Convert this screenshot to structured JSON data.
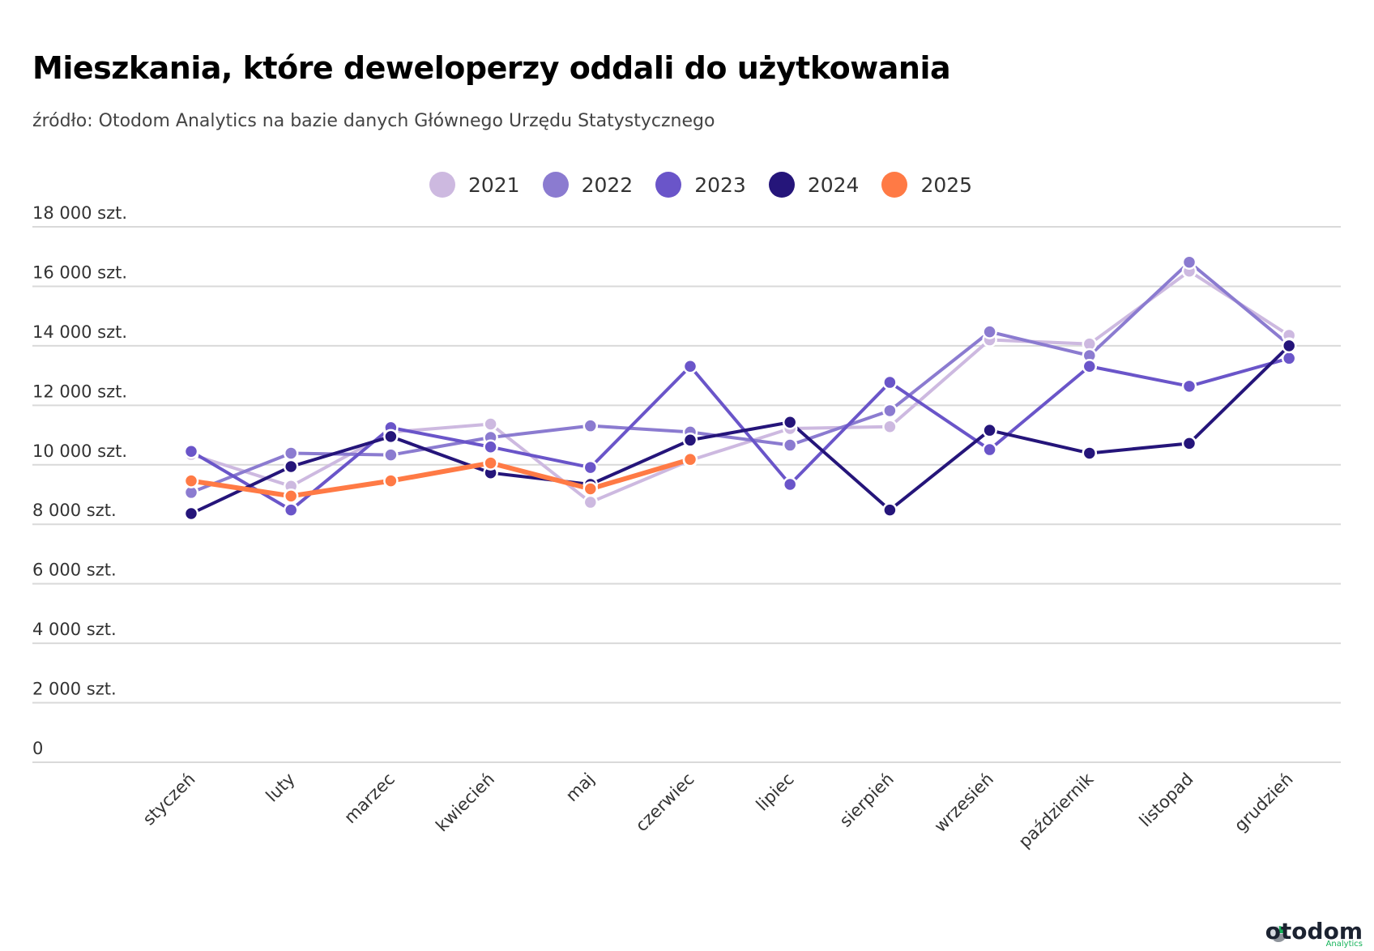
{
  "header": {
    "title": "Mieszkania, które deweloperzy oddali do użytkowania",
    "subtitle": "źródło: Otodom Analytics na bazie danych Głównego Urzędu Statystycznego"
  },
  "branding": {
    "logo_text": "otodom",
    "logo_sub": "Analytics",
    "logo_icon": "pie-chart-logo-icon"
  },
  "chart_data": {
    "type": "line",
    "title": "Mieszkania, które deweloperzy oddali do użytkowania",
    "subtitle": "źródło: Otodom Analytics na bazie danych Głównego Urzędu Statystycznego",
    "xlabel": "",
    "ylabel": "",
    "ylim": [
      0,
      18000
    ],
    "yticks": [
      0,
      2000,
      4000,
      6000,
      8000,
      10000,
      12000,
      14000,
      16000,
      18000
    ],
    "ytick_labels": [
      "0",
      "2 000 szt.",
      "4 000 szt.",
      "6 000 szt.",
      "8 000 szt.",
      "10 000 szt.",
      "12 000 szt.",
      "14 000 szt.",
      "16 000 szt.",
      "18 000 szt."
    ],
    "grid": true,
    "legend_position": "top-center",
    "categories": [
      "styczeń",
      "luty",
      "marzec",
      "kwiecień",
      "maj",
      "czerwiec",
      "lipiec",
      "sierpień",
      "wrzesień",
      "październik",
      "listopad",
      "grudzień"
    ],
    "series": [
      {
        "name": "2021",
        "color": "#cdb9e0",
        "values": [
          10350,
          9280,
          11100,
          11370,
          8740,
          10150,
          11220,
          11280,
          14200,
          14060,
          16510,
          14350
        ]
      },
      {
        "name": "2022",
        "color": "#8b7bd0",
        "values": [
          9070,
          10390,
          10330,
          10920,
          11310,
          11100,
          10660,
          11820,
          14470,
          13670,
          16810,
          14030
        ]
      },
      {
        "name": "2023",
        "color": "#6a55c9",
        "values": [
          10450,
          8480,
          11250,
          10600,
          9910,
          13310,
          9340,
          12770,
          10510,
          13310,
          12640,
          13580
        ]
      },
      {
        "name": "2024",
        "color": "#25157a",
        "values": [
          8360,
          9940,
          10950,
          9730,
          9340,
          10830,
          11430,
          8480,
          11160,
          10390,
          10720,
          14000
        ]
      },
      {
        "name": "2025",
        "color": "#ff7a45",
        "values": [
          9460,
          8950,
          9460,
          10060,
          9190,
          10180,
          null,
          null,
          null,
          null,
          null,
          null
        ]
      }
    ]
  }
}
